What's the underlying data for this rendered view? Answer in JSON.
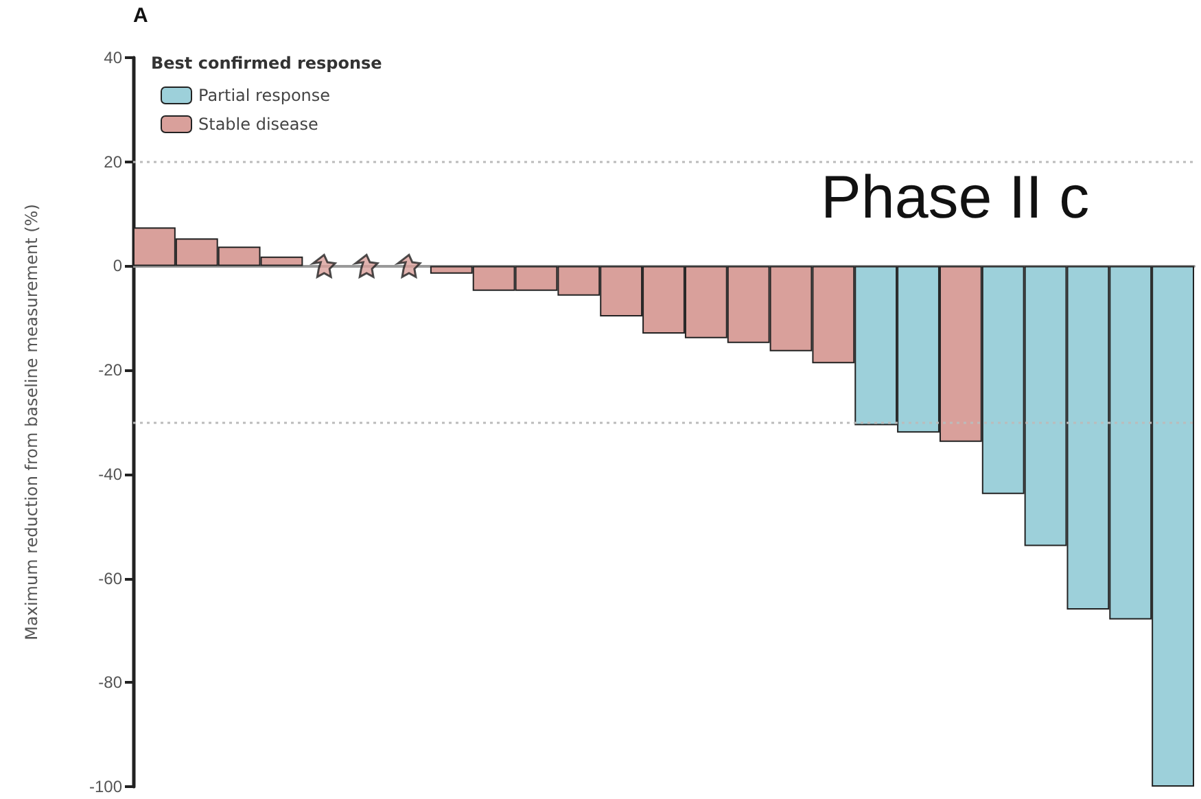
{
  "chart_data": {
    "type": "bar",
    "ylabel": "Maximum reduction from baseline measurement (%)",
    "legend_title": "Best confirmed response",
    "annotations": [
      "A",
      "Phase II c"
    ],
    "categories": [
      null,
      null,
      null,
      null,
      null,
      null,
      null,
      null,
      null,
      null,
      null,
      null,
      null,
      null,
      null,
      null,
      null,
      null,
      null,
      null,
      null,
      null,
      null,
      null,
      null
    ],
    "series": [
      {
        "name": "Partial response",
        "color": "#9dd0da",
        "values": [
          null,
          null,
          null,
          null,
          null,
          null,
          null,
          null,
          null,
          null,
          null,
          null,
          null,
          null,
          null,
          null,
          null,
          -30.6,
          -32,
          null,
          -43.8,
          -53.8,
          -66,
          -67.9,
          -100
        ]
      },
      {
        "name": "Stable disease",
        "color": "#d9a09b",
        "values": [
          7.4,
          5.3,
          3.7,
          1.8,
          null,
          null,
          null,
          -1.5,
          -4.8,
          -4.8,
          -5.7,
          -9.7,
          -13,
          -13.9,
          -14.8,
          -16.4,
          -18.7,
          null,
          null,
          -33.8,
          null,
          null,
          null,
          null,
          null
        ]
      },
      {
        "type": "scatter",
        "marker": "star",
        "color": "#d9a09b",
        "values": [
          null,
          null,
          null,
          null,
          0,
          0,
          0,
          null,
          null,
          null,
          null,
          null,
          null,
          null,
          null,
          null,
          null,
          null,
          null,
          null,
          null,
          null,
          null,
          null,
          null
        ]
      }
    ],
    "ylim": [
      -100,
      40
    ],
    "yticks": [
      -100,
      -80,
      -60,
      -40,
      -20,
      0,
      20,
      40
    ],
    "ref_lines": [
      {
        "axis": "y",
        "value": 20,
        "color": "#bbbbbb",
        "line_style": "dotted"
      },
      {
        "axis": "y",
        "value": -30,
        "color": "#bbbbbb",
        "line_style": "dotted"
      }
    ],
    "grid": false,
    "legend": "top left"
  }
}
